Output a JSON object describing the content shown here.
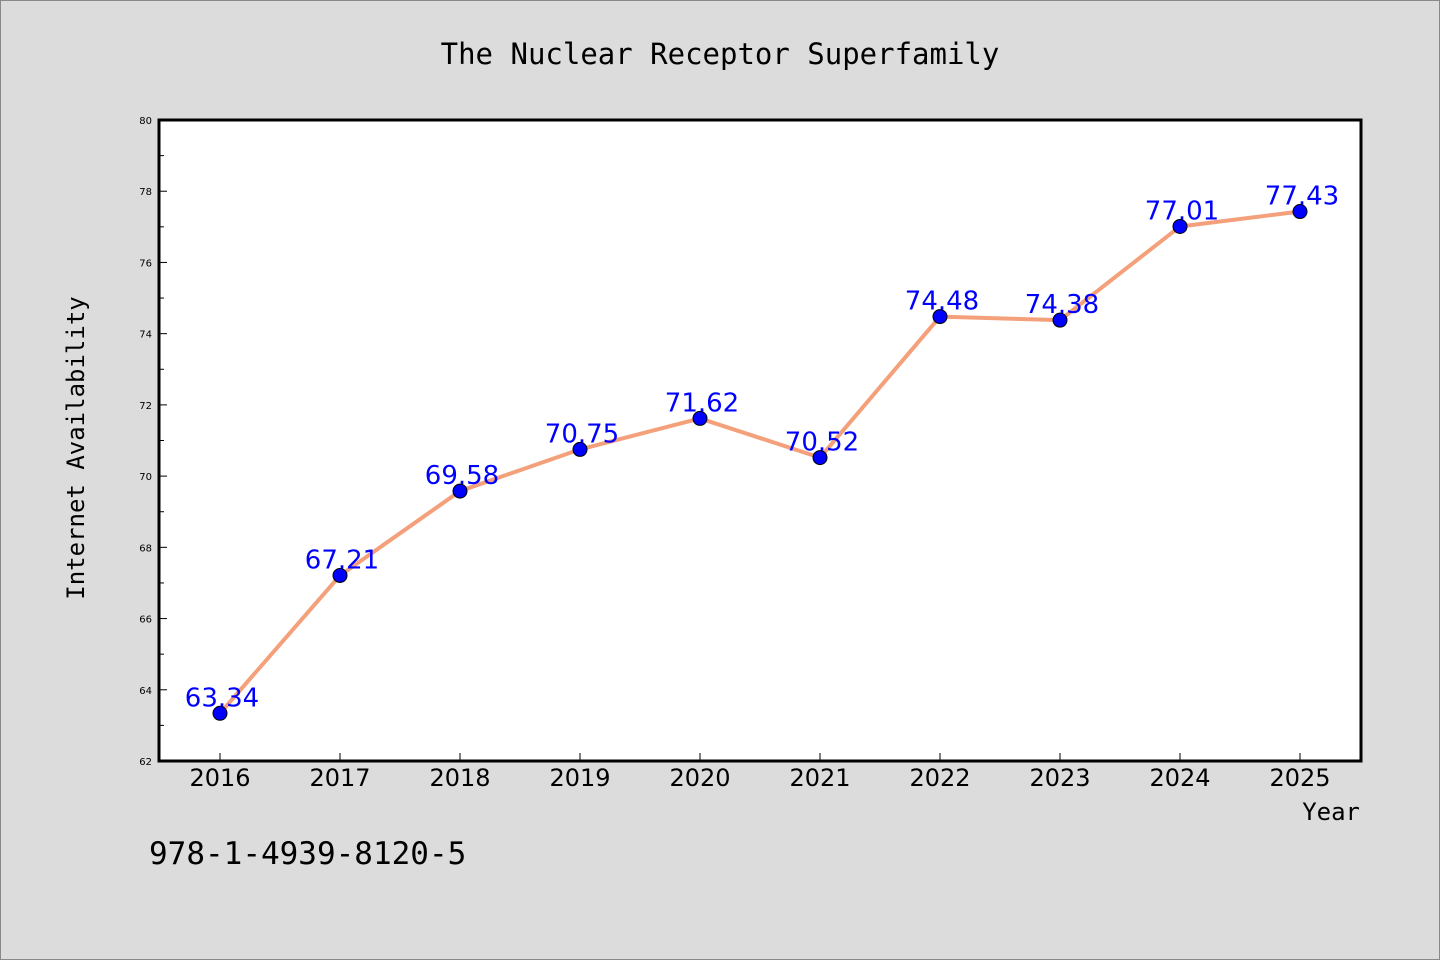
{
  "chart_data": {
    "type": "line",
    "title": "The Nuclear Receptor Superfamily",
    "xlabel": "Year",
    "ylabel": "Internet Availability",
    "categories": [
      "2016",
      "2017",
      "2018",
      "2019",
      "2020",
      "2021",
      "2022",
      "2023",
      "2024",
      "2025"
    ],
    "series": [
      {
        "values": [
          63.34,
          67.21,
          69.58,
          70.75,
          71.62,
          70.52,
          74.48,
          74.38,
          77.01,
          77.43
        ],
        "data_labels": [
          "63.34",
          "67.21",
          "69.58",
          "70.75",
          "71.62",
          "70.52",
          "74.48",
          "74.38",
          "77.01",
          "77.43"
        ]
      }
    ],
    "ylim": [
      62,
      80
    ],
    "yticks": [
      "62",
      "64",
      "66",
      "68",
      "70",
      "72",
      "74",
      "76",
      "78",
      "80"
    ],
    "grid": false,
    "colors": {
      "line": "#f4a07a",
      "marker": "#0000ff",
      "label": "#0000ff",
      "background": "#dcdcdc",
      "plot_background": "#ffffff"
    }
  },
  "footer_text": "978-1-4939-8120-5"
}
